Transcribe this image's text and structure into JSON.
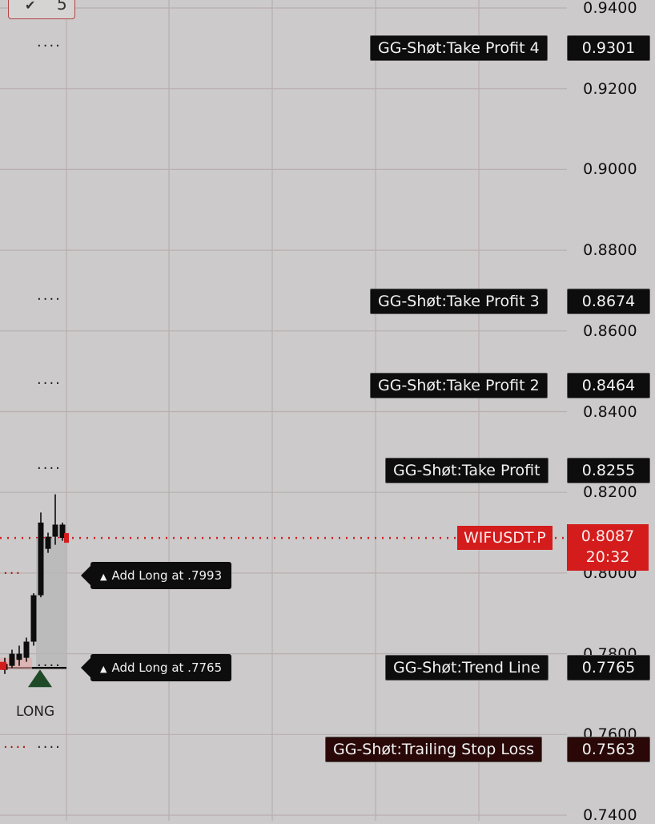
{
  "indicator_chip": {
    "icon": "chevron-down-icon",
    "count": "5"
  },
  "chart_data": {
    "type": "line",
    "title": "",
    "xlabel": "",
    "ylabel": "",
    "ylim": [
      0.74,
      0.942
    ],
    "y_ticks": [
      "0.9400",
      "0.9200",
      "0.9000",
      "0.8800",
      "0.8600",
      "0.8400",
      "0.8200",
      "0.8000",
      "0.7800",
      "0.7600",
      "0.7400"
    ],
    "y_tick_values": [
      0.94,
      0.92,
      0.9,
      0.88,
      0.86,
      0.84,
      0.82,
      0.8,
      0.78,
      0.76,
      0.74
    ],
    "levels": [
      {
        "name": "GG-Shøt:Take Profit 4",
        "value": 0.9301,
        "label": "0.9301"
      },
      {
        "name": "GG-Shøt:Take Profit 3",
        "value": 0.8674,
        "label": "0.8674"
      },
      {
        "name": "GG-Shøt:Take Profit 2",
        "value": 0.8464,
        "label": "0.8464"
      },
      {
        "name": "GG-Shøt:Take Profit",
        "value": 0.8255,
        "label": "0.8255"
      },
      {
        "name": "GG-Shøt:Trend Line",
        "value": 0.7765,
        "label": "0.7765"
      },
      {
        "name": "GG-Shøt:Trailing Stop Loss",
        "value": 0.7563,
        "label": "0.7563"
      }
    ],
    "current_price": {
      "symbol": "WIFUSDT.P",
      "value": 0.8087,
      "label": "0.8087",
      "countdown": "20:32"
    },
    "annotations": [
      {
        "text": "Add Long at .7993",
        "value": 0.7993
      },
      {
        "text": "Add Long at .7765",
        "value": 0.7765
      }
    ],
    "signal": {
      "text": "LONG",
      "value": 0.7765
    },
    "candles": [
      {
        "o": 0.7775,
        "h": 0.779,
        "l": 0.775,
        "c": 0.776
      },
      {
        "o": 0.777,
        "h": 0.781,
        "l": 0.7765,
        "c": 0.78
      },
      {
        "o": 0.78,
        "h": 0.782,
        "l": 0.777,
        "c": 0.7785
      },
      {
        "o": 0.779,
        "h": 0.784,
        "l": 0.778,
        "c": 0.783
      },
      {
        "o": 0.783,
        "h": 0.795,
        "l": 0.782,
        "c": 0.7945
      },
      {
        "o": 0.7945,
        "h": 0.815,
        "l": 0.794,
        "c": 0.8125
      },
      {
        "o": 0.806,
        "h": 0.81,
        "l": 0.805,
        "c": 0.809
      },
      {
        "o": 0.809,
        "h": 0.8195,
        "l": 0.807,
        "c": 0.812
      },
      {
        "o": 0.812,
        "h": 0.8125,
        "l": 0.808,
        "c": 0.8087
      }
    ],
    "grid": true,
    "colors": {
      "bull": "#0d0d0d",
      "bear": "#0d0d0d",
      "price": "#d41c1c",
      "grid": "#b9aeb0",
      "long_marker": "#1f4a28"
    }
  }
}
